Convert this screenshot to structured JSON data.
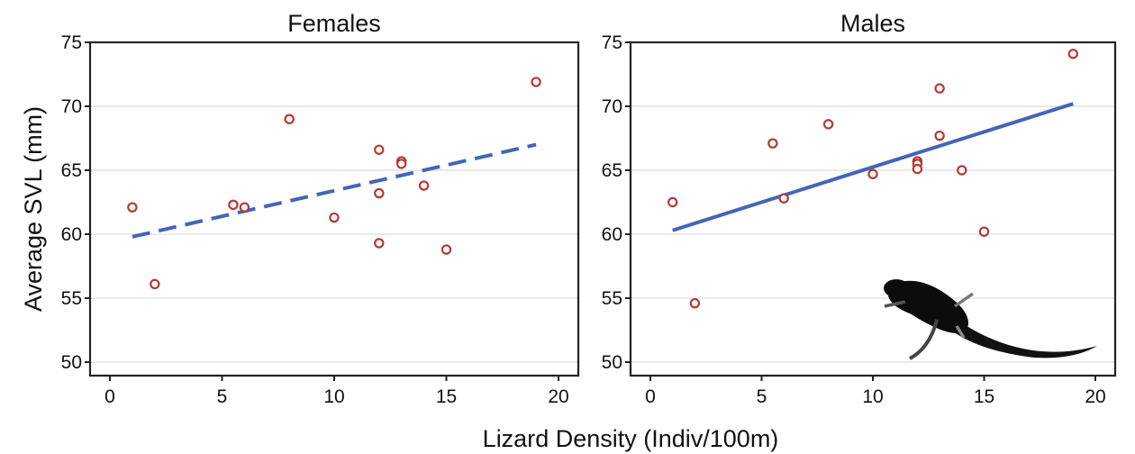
{
  "shared": {
    "ylabel": "Average SVL (mm)",
    "xlabel": "Lizard Density (Indiv/100m)",
    "colors": {
      "points": "#b23a35",
      "fit": "#4465b8",
      "grid": "#e4e4e4"
    },
    "lizard_icon": "lizard-silhouette"
  },
  "chart_data": [
    {
      "type": "scatter",
      "title": "Females",
      "xlim": [
        0,
        20
      ],
      "ylim": [
        50,
        75
      ],
      "xticks": [
        0,
        5,
        10,
        15,
        20
      ],
      "yticks": [
        50,
        55,
        60,
        65,
        70,
        75
      ],
      "grid": "horizontal",
      "series": [
        {
          "points": [
            {
              "x": 1,
              "y": 62.1
            },
            {
              "x": 2,
              "y": 56.1
            },
            {
              "x": 5.5,
              "y": 62.3
            },
            {
              "x": 6,
              "y": 62.1
            },
            {
              "x": 8,
              "y": 69.0
            },
            {
              "x": 10,
              "y": 61.3
            },
            {
              "x": 12,
              "y": 66.6
            },
            {
              "x": 12,
              "y": 63.2
            },
            {
              "x": 12,
              "y": 59.3
            },
            {
              "x": 13,
              "y": 65.7
            },
            {
              "x": 13,
              "y": 65.5
            },
            {
              "x": 14,
              "y": 63.8
            },
            {
              "x": 15,
              "y": 58.8
            },
            {
              "x": 19,
              "y": 71.9
            }
          ]
        }
      ],
      "fit": {
        "style": "dashed",
        "x": [
          1,
          19
        ],
        "y": [
          59.8,
          67.0
        ]
      }
    },
    {
      "type": "scatter",
      "title": "Males",
      "xlim": [
        0,
        20
      ],
      "ylim": [
        50,
        75
      ],
      "xticks": [
        0,
        5,
        10,
        15,
        20
      ],
      "yticks": [
        50,
        55,
        60,
        65,
        70,
        75
      ],
      "grid": "horizontal",
      "series": [
        {
          "points": [
            {
              "x": 1,
              "y": 62.5
            },
            {
              "x": 2,
              "y": 54.6
            },
            {
              "x": 5.5,
              "y": 67.1
            },
            {
              "x": 6,
              "y": 62.8
            },
            {
              "x": 8,
              "y": 68.6
            },
            {
              "x": 10,
              "y": 64.7
            },
            {
              "x": 12,
              "y": 65.7
            },
            {
              "x": 12,
              "y": 65.5
            },
            {
              "x": 12,
              "y": 65.1
            },
            {
              "x": 13,
              "y": 71.4
            },
            {
              "x": 13,
              "y": 67.7
            },
            {
              "x": 14,
              "y": 65.0
            },
            {
              "x": 15,
              "y": 60.2
            },
            {
              "x": 19,
              "y": 74.1
            }
          ]
        }
      ],
      "fit": {
        "style": "solid",
        "x": [
          1,
          19
        ],
        "y": [
          60.3,
          70.2
        ]
      }
    }
  ]
}
